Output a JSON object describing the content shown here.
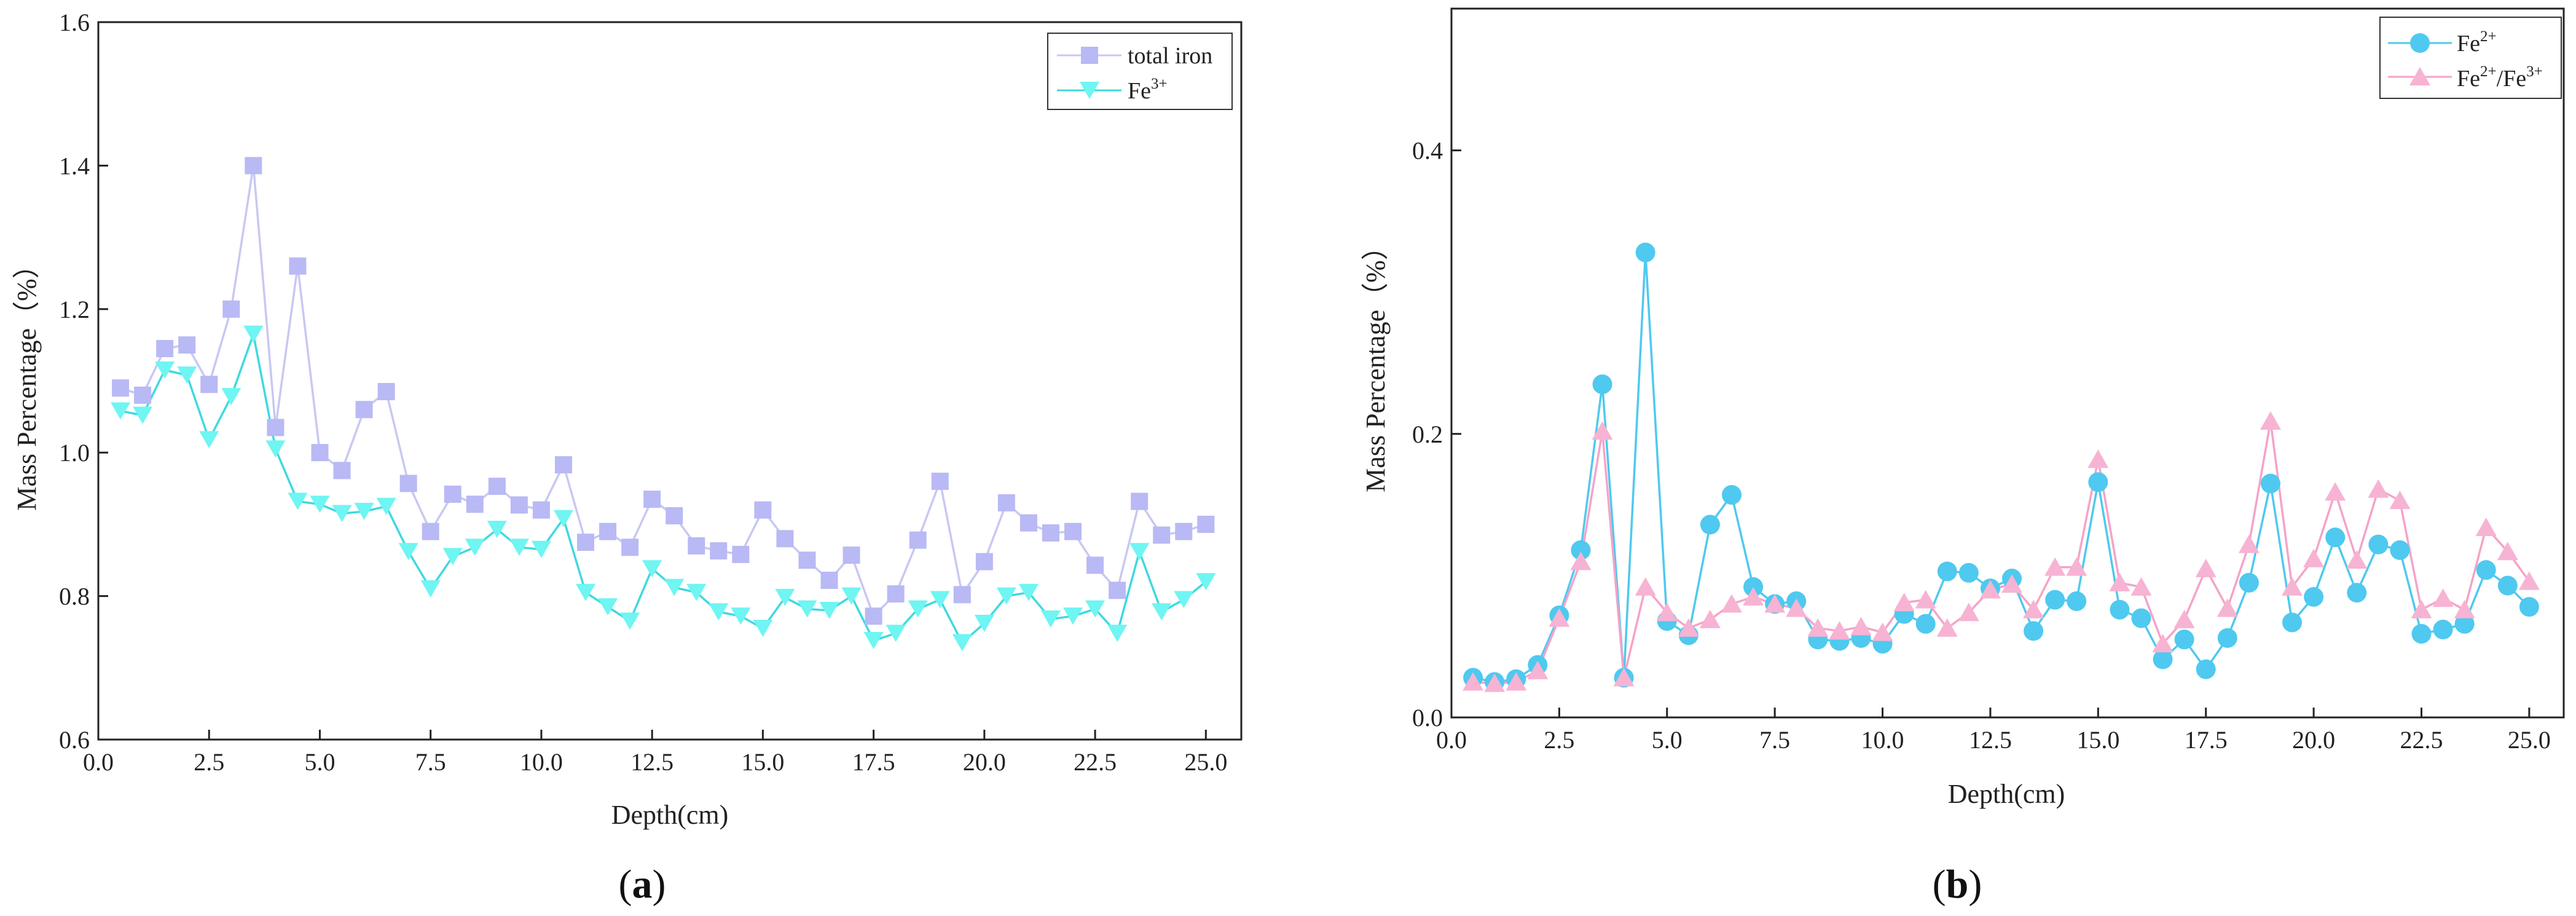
{
  "chart_data": [
    {
      "id": "a",
      "type": "line",
      "panel_label": "(a)",
      "panel_letter": "a",
      "xlabel": "Depth(cm)",
      "ylabel": "Mass Percentage（%）",
      "xlim": [
        0,
        25.8
      ],
      "ylim": [
        0.6,
        1.6
      ],
      "xticks": [
        0.0,
        2.5,
        5.0,
        7.5,
        10.0,
        12.5,
        15.0,
        17.5,
        20.0,
        22.5,
        25.0
      ],
      "xtick_labels": [
        "0.0",
        "2.5",
        "5.0",
        "7.5",
        "10.0",
        "12.5",
        "15.0",
        "17.5",
        "20.0",
        "22.5",
        "25.0"
      ],
      "yticks": [
        0.6,
        0.8,
        1.0,
        1.2,
        1.4,
        1.6
      ],
      "ytick_labels": [
        "0.6",
        "0.8",
        "1.0",
        "1.2",
        "1.4",
        "1.6"
      ],
      "legend_position": "top-right",
      "x": [
        0.5,
        1.0,
        1.5,
        2.0,
        2.5,
        3.0,
        3.5,
        4.0,
        4.5,
        5.0,
        5.5,
        6.0,
        6.5,
        7.0,
        7.5,
        8.0,
        8.5,
        9.0,
        9.5,
        10.0,
        10.5,
        11.0,
        11.5,
        12.0,
        12.5,
        13.0,
        13.5,
        14.0,
        14.5,
        15.0,
        15.5,
        16.0,
        16.5,
        17.0,
        17.5,
        18.0,
        18.5,
        19.0,
        19.5,
        20.0,
        20.5,
        21.0,
        21.5,
        22.0,
        22.5,
        23.0,
        23.5,
        24.0,
        24.5,
        25.0
      ],
      "series": [
        {
          "name": "total iron",
          "name_base": "total iron",
          "name_sup": "",
          "marker": "square",
          "color": "#b9b9f5",
          "line_color": "#c8c8f2",
          "values": [
            1.09,
            1.08,
            1.145,
            1.15,
            1.095,
            1.2,
            1.4,
            1.035,
            1.26,
            1.0,
            0.975,
            1.06,
            1.085,
            0.957,
            0.89,
            0.942,
            0.928,
            0.953,
            0.927,
            0.92,
            0.983,
            0.875,
            0.89,
            0.868,
            0.935,
            0.912,
            0.87,
            0.863,
            0.858,
            0.92,
            0.88,
            0.85,
            0.822,
            0.857,
            0.772,
            0.803,
            0.878,
            0.96,
            0.802,
            0.848,
            0.93,
            0.902,
            0.888,
            0.89,
            0.843,
            0.808,
            0.932,
            0.885,
            0.89,
            0.9
          ]
        },
        {
          "name": "Fe3+",
          "name_base": "Fe",
          "name_sup": "3+",
          "marker": "triangle-down",
          "color": "#6ff5f2",
          "line_color": "#3fd9e0",
          "values": [
            1.058,
            1.052,
            1.115,
            1.108,
            1.018,
            1.078,
            1.165,
            1.005,
            0.932,
            0.928,
            0.915,
            0.918,
            0.925,
            0.862,
            0.81,
            0.855,
            0.868,
            0.893,
            0.868,
            0.865,
            0.908,
            0.805,
            0.785,
            0.765,
            0.838,
            0.812,
            0.805,
            0.778,
            0.772,
            0.755,
            0.798,
            0.782,
            0.78,
            0.8,
            0.738,
            0.748,
            0.782,
            0.795,
            0.735,
            0.762,
            0.8,
            0.805,
            0.768,
            0.772,
            0.782,
            0.748,
            0.862,
            0.778,
            0.795,
            0.82
          ]
        }
      ]
    },
    {
      "id": "b",
      "type": "line",
      "panel_label": "(b)",
      "panel_letter": "b",
      "xlabel": "Depth(cm)",
      "ylabel": "Mass Percentage（%）",
      "xlim": [
        0,
        25.8
      ],
      "ylim": [
        0,
        0.5
      ],
      "xticks": [
        0.0,
        2.5,
        5.0,
        7.5,
        10.0,
        12.5,
        15.0,
        17.5,
        20.0,
        22.5,
        25.0
      ],
      "xtick_labels": [
        "0.0",
        "2.5",
        "5.0",
        "7.5",
        "10.0",
        "12.5",
        "15.0",
        "17.5",
        "20.0",
        "22.5",
        "25.0"
      ],
      "yticks": [
        0.0,
        0.2,
        0.4
      ],
      "ytick_labels": [
        "0.0",
        "0.2",
        "0.4"
      ],
      "legend_position": "top-right",
      "x": [
        0.5,
        1.0,
        1.5,
        2.0,
        2.5,
        3.0,
        3.5,
        4.0,
        4.5,
        5.0,
        5.5,
        6.0,
        6.5,
        7.0,
        7.5,
        8.0,
        8.5,
        9.0,
        9.5,
        10.0,
        10.5,
        11.0,
        11.5,
        12.0,
        12.5,
        13.0,
        13.5,
        14.0,
        14.5,
        15.0,
        15.5,
        16.0,
        16.5,
        17.0,
        17.5,
        18.0,
        18.5,
        19.0,
        19.5,
        20.0,
        20.5,
        21.0,
        21.5,
        22.0,
        22.5,
        23.0,
        23.5,
        24.0,
        24.5,
        25.0
      ],
      "series": [
        {
          "name": "Fe2+",
          "name_base": "Fe",
          "name_sup": "2+",
          "marker": "circle",
          "color": "#4fc9ef",
          "line_color": "#4fc9ef",
          "values": [
            0.028,
            0.025,
            0.027,
            0.037,
            0.072,
            0.118,
            0.235,
            0.028,
            0.328,
            0.068,
            0.058,
            0.136,
            0.157,
            0.092,
            0.08,
            0.082,
            0.055,
            0.054,
            0.056,
            0.052,
            0.073,
            0.066,
            0.103,
            0.102,
            0.091,
            0.098,
            0.061,
            0.083,
            0.082,
            0.166,
            0.076,
            0.07,
            0.041,
            0.055,
            0.034,
            0.056,
            0.095,
            0.165,
            0.067,
            0.085,
            0.127,
            0.088,
            0.122,
            0.118,
            0.059,
            0.062,
            0.066,
            0.104,
            0.093,
            0.078
          ]
        },
        {
          "name": "Fe2+/Fe3+",
          "name_base": "Fe",
          "name_sup": "2+",
          "name_mid": "/Fe",
          "name_sup2": "3+",
          "marker": "triangle-up",
          "color": "#f7b3d3",
          "line_color": "#f5a3c8",
          "values": [
            0.025,
            0.024,
            0.025,
            0.033,
            0.07,
            0.11,
            0.202,
            0.028,
            0.092,
            0.074,
            0.063,
            0.069,
            0.08,
            0.085,
            0.08,
            0.077,
            0.063,
            0.061,
            0.064,
            0.06,
            0.081,
            0.083,
            0.063,
            0.074,
            0.09,
            0.094,
            0.076,
            0.106,
            0.106,
            0.182,
            0.095,
            0.092,
            0.052,
            0.069,
            0.105,
            0.077,
            0.122,
            0.209,
            0.092,
            0.112,
            0.159,
            0.111,
            0.161,
            0.153,
            0.076,
            0.084,
            0.076,
            0.134,
            0.117,
            0.096
          ]
        }
      ]
    }
  ]
}
